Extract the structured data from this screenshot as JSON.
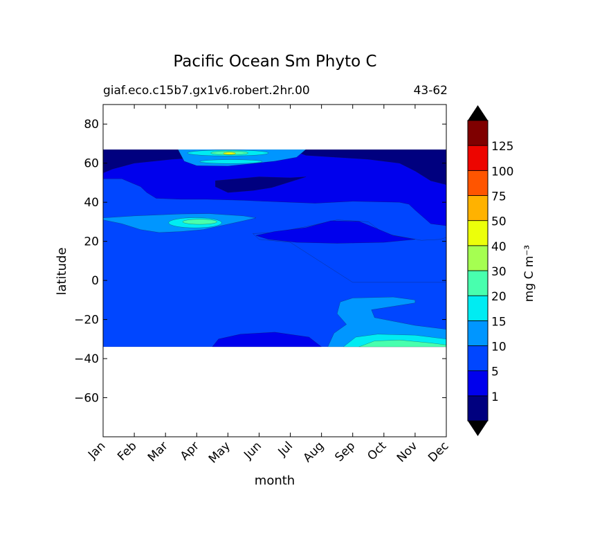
{
  "chart_data": {
    "type": "heatmap",
    "plot_style": "filled contour",
    "title": "Pacific Ocean Sm Phyto C",
    "subtitle_left": "giaf.eco.c15b7.gx1v6.robert.2hr.00",
    "subtitle_right": "43-62",
    "xlabel": "month",
    "ylabel": "latitude",
    "x_ticks": [
      "Jan",
      "Feb",
      "Mar",
      "Apr",
      "May",
      "Jun",
      "Jul",
      "Aug",
      "Sep",
      "Oct",
      "Nov",
      "Dec"
    ],
    "xlim": [
      0,
      11
    ],
    "y_ticks": [
      80,
      60,
      40,
      20,
      0,
      -20,
      -40,
      -60
    ],
    "y_tick_labels": [
      "80",
      "60",
      "40",
      "20",
      "0",
      "−20",
      "−40",
      "−60"
    ],
    "ylim": [
      -80,
      90
    ],
    "data_lat_range": [
      -34,
      67
    ],
    "colorbar": {
      "label": "mg C m⁻³",
      "extend": "both",
      "levels": [
        1,
        5,
        10,
        15,
        20,
        30,
        40,
        50,
        75,
        100,
        125
      ],
      "level_labels": [
        "1",
        "5",
        "10",
        "15",
        "20",
        "30",
        "40",
        "50",
        "75",
        "100",
        "125"
      ],
      "colors": [
        "#00007f",
        "#0000ed",
        "#0046ff",
        "#0096ff",
        "#00ecf2",
        "#48ffae",
        "#a5ff51",
        "#ecff0a",
        "#ffb200",
        "#ff5500",
        "#ed0500",
        "#7f0000"
      ],
      "under_color": "#000000",
      "over_color": "#000000"
    },
    "regions": [
      {
        "name": "background",
        "level": "5-10"
      },
      {
        "name": "high-lat-north",
        "level": "<1",
        "approx_lat": [
          55,
          67
        ],
        "approx_months": [
          "Jan",
          "Dec"
        ]
      },
      {
        "name": "subpolar-low",
        "level": "1-5",
        "approx_lat": [
          35,
          67
        ]
      },
      {
        "name": "subtropical-north-low",
        "level": "1-5",
        "approx_lat": [
          20,
          33
        ],
        "approx_months": [
          "Jul",
          "Dec"
        ]
      },
      {
        "name": "spring-bloom-30N",
        "level": "10-20",
        "approx_lat": [
          26,
          34
        ],
        "approx_months": [
          "Feb",
          "Apr"
        ]
      },
      {
        "name": "summer-bloom-60N",
        "level": "20-40",
        "approx_lat": [
          59,
          67
        ],
        "approx_months": [
          "May",
          "Jun"
        ]
      },
      {
        "name": "south-subtropical-low",
        "level": "1-5",
        "approx_lat": [
          -34,
          -27
        ],
        "approx_months": [
          "Apr",
          "Jul"
        ]
      },
      {
        "name": "southern-spring-bloom",
        "level": "10-20",
        "approx_lat": [
          -34,
          -9
        ],
        "approx_months": [
          "Aug",
          "Dec"
        ]
      }
    ]
  }
}
